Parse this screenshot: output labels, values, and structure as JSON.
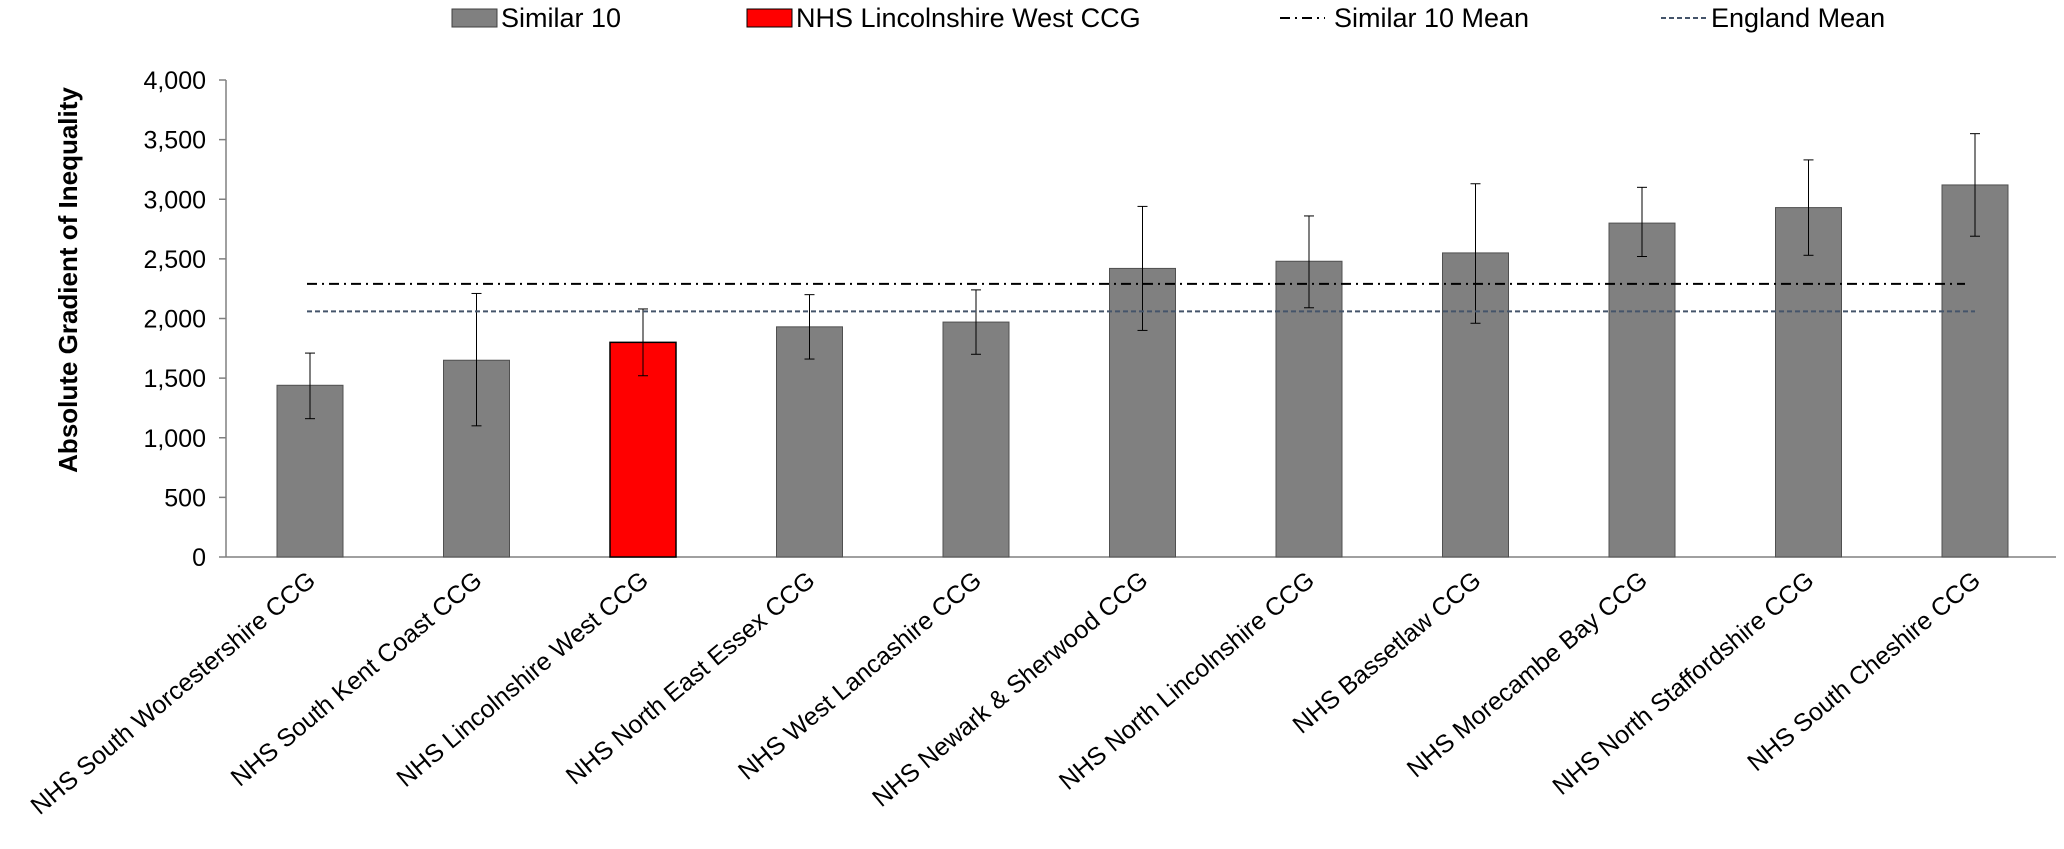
{
  "chart_data": {
    "type": "bar",
    "ylabel": "Absolute Gradient of Inequality",
    "ylim": [
      0,
      4000
    ],
    "yticks": [
      0,
      500,
      1000,
      1500,
      2000,
      2500,
      3000,
      3500,
      4000
    ],
    "ytick_labels": [
      "0",
      "500",
      "1,000",
      "1,500",
      "2,000",
      "2,500",
      "3,000",
      "3,500",
      "4,000"
    ],
    "categories": [
      "NHS South Worcestershire CCG",
      "NHS South Kent Coast CCG",
      "NHS Lincolnshire West CCG",
      "NHS North East Essex CCG",
      "NHS West Lancashire CCG",
      "NHS Newark & Sherwood CCG",
      "NHS North Lincolnshire CCG",
      "NHS Bassetlaw CCG",
      "NHS Morecambe Bay CCG",
      "NHS North Staffordshire CCG",
      "NHS South Cheshire CCG"
    ],
    "values": [
      1440,
      1650,
      1800,
      1930,
      1970,
      2420,
      2480,
      2550,
      2800,
      2930,
      3120
    ],
    "error_low": [
      1160,
      1100,
      1520,
      1660,
      1700,
      1900,
      2090,
      1960,
      2520,
      2530,
      2690
    ],
    "error_high": [
      1710,
      2210,
      2080,
      2200,
      2240,
      2940,
      2860,
      3130,
      3100,
      3330,
      3550
    ],
    "highlight_index": 2,
    "bar_color": "#808080",
    "highlight_color": "#ff0000",
    "similar_mean": 2290,
    "england_mean": 2060,
    "similar_mean_color": "#000000",
    "england_mean_color": "#44546a",
    "grid": false,
    "legend": {
      "position": "top",
      "items": [
        {
          "label": "Similar 10",
          "kind": "bar"
        },
        {
          "label": "NHS Lincolnshire West CCG",
          "kind": "bar-highlight"
        },
        {
          "label": "Similar 10 Mean",
          "kind": "line-dashdot"
        },
        {
          "label": "England Mean",
          "kind": "line-dashed"
        }
      ]
    }
  }
}
